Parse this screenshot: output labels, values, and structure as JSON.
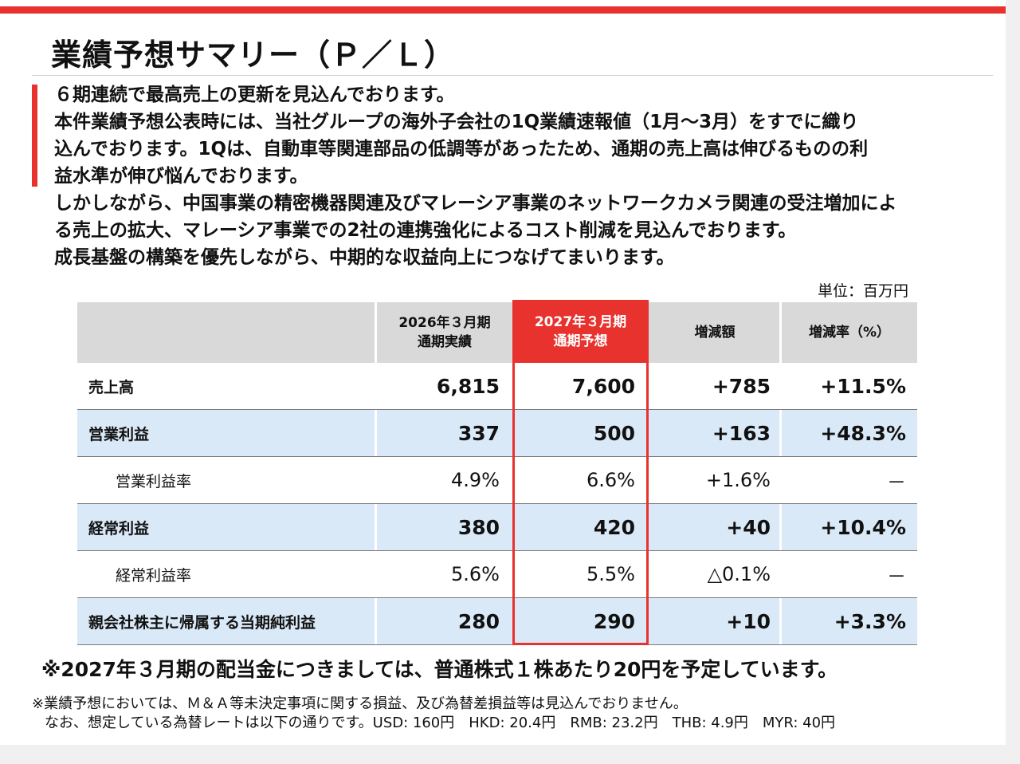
{
  "title": "業績予想サマリー（Ｐ／Ｌ）",
  "intro": [
    "６期連続で最高売上の更新を見込んでおります。",
    "本件業績予想公表時には、当社グループの海外子会社の1Q業績速報値（1月～3月）をすでに織り",
    "込んでおります。1Qは、自動車等関連部品の低調等があったため、通期の売上高は伸びるものの利",
    "益水準が伸び悩んでおります。",
    "しかしながら、中国事業の精密機器関連及びマレーシア事業のネットワークカメラ関連の受注増加によ",
    "る売上の拡大、マレーシア事業での2社の連携強化によるコスト削減を見込んでおります。",
    "成長基盤の構築を優先しながら、中期的な収益向上につなげてまいります。"
  ],
  "unit_label": "単位：百万円",
  "table": {
    "headers": [
      {
        "line1": "2026年３月期",
        "line2": "通期実績"
      },
      {
        "line1": "2027年３月期",
        "line2": "通期予想"
      },
      {
        "line1": "増減額",
        "line2": ""
      },
      {
        "line1": "増減率（%）",
        "line2": ""
      }
    ],
    "rows": [
      {
        "label": "売上高",
        "values": [
          "6,815",
          "7,600",
          "+785",
          "+11.5%"
        ]
      },
      {
        "label": "営業利益",
        "values": [
          "337",
          "500",
          "+163",
          "+48.3%"
        ]
      },
      {
        "label": "営業利益率",
        "values": [
          "4.9%",
          "6.6%",
          "+1.6%",
          "－"
        ]
      },
      {
        "label": "経常利益",
        "values": [
          "380",
          "420",
          "+40",
          "+10.4%"
        ]
      },
      {
        "label": "経常利益率",
        "values": [
          "5.6%",
          "5.5%",
          "△0.1%",
          "－"
        ]
      },
      {
        "label": "親会社株主に帰属する当期純利益",
        "values": [
          "280",
          "290",
          "+10",
          "+3.3%"
        ]
      }
    ]
  },
  "colors": {
    "accent": "#e8322e",
    "header_gray": "#d9d9d9",
    "row_blue": "#dae9f7"
  },
  "dividend_note": "※2027年３月期の配当金につきましては、普通株式１株あたり20円を予定しています。",
  "footnote_1": "※業績予想においては、Ｍ＆Ａ等未決定事項に関する損益、及び為替差損益等は見込んでおりません。",
  "footnote_2": "なお、想定している為替レートは以下の通りです。USD: 160円　HKD: 20.4円　RMB: 23.2円　THB: 4.9円　MYR: 40円"
}
